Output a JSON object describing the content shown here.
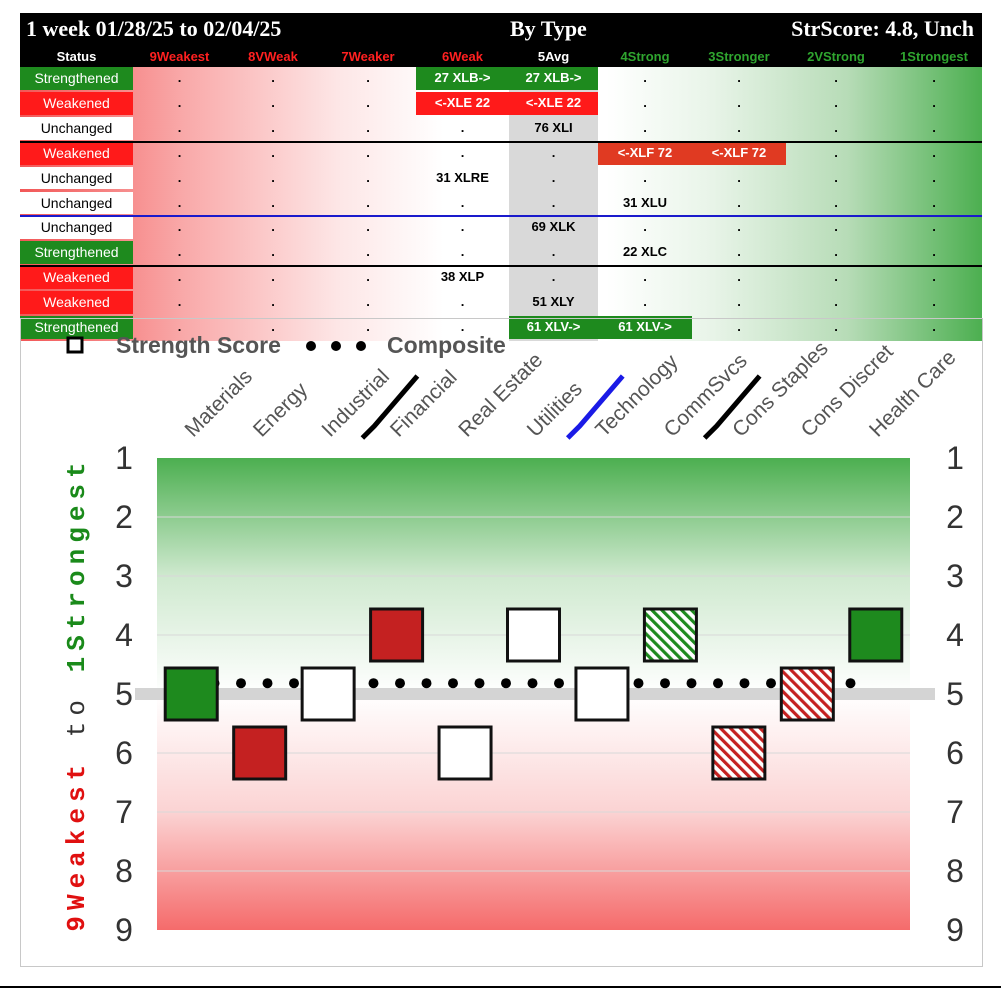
{
  "table": {
    "title_left": "1 week 01/28/25 to 02/04/25",
    "title_center": "By Type",
    "title_right": "StrScore: 4.8, Unch",
    "headers": [
      {
        "label": "Status",
        "color": "#ffffff"
      },
      {
        "label": "9Weakest",
        "color": "#ff2020"
      },
      {
        "label": "8VWeak",
        "color": "#ff2020"
      },
      {
        "label": "7Weaker",
        "color": "#ff2020"
      },
      {
        "label": "6Weak",
        "color": "#ff2020"
      },
      {
        "label": "5Avg",
        "color": "#ffffff"
      },
      {
        "label": "4Strong",
        "color": "#2fa52f"
      },
      {
        "label": "3Stronger",
        "color": "#2fa52f"
      },
      {
        "label": "2VStrong",
        "color": "#2fa52f"
      },
      {
        "label": "1Strongest",
        "color": "#2fa52f"
      }
    ],
    "dot_char": ".",
    "rows": [
      {
        "status": "Strengthened",
        "kind": "s",
        "cells": [
          {
            "col": 4,
            "text": "27 XLB->",
            "style": "g"
          },
          {
            "col": 5,
            "text": "27 XLB->",
            "style": "g"
          }
        ]
      },
      {
        "status": "Weakened",
        "kind": "w",
        "cells": [
          {
            "col": 4,
            "text": "<-XLE 22",
            "style": "r"
          },
          {
            "col": 5,
            "text": "<-XLE 22",
            "style": "r"
          }
        ]
      },
      {
        "status": "Unchanged",
        "kind": "u",
        "cells": [
          {
            "col": 5,
            "text": "76 XLI",
            "style": "t"
          }
        ]
      },
      {
        "status": "Weakened",
        "kind": "w",
        "cells": [
          {
            "col": 6,
            "text": "<-XLF 72",
            "style": "o"
          },
          {
            "col": 7,
            "text": "<-XLF 72",
            "style": "o"
          }
        ]
      },
      {
        "status": "Unchanged",
        "kind": "u",
        "cells": [
          {
            "col": 4,
            "text": "31 XLRE",
            "style": "t"
          }
        ]
      },
      {
        "status": "Unchanged",
        "kind": "u",
        "cells": [
          {
            "col": 6,
            "text": "31 XLU",
            "style": "t"
          }
        ]
      },
      {
        "status": "Unchanged",
        "kind": "u",
        "cells": [
          {
            "col": 5,
            "text": "69 XLK",
            "style": "t"
          }
        ]
      },
      {
        "status": "Strengthened",
        "kind": "s",
        "cells": [
          {
            "col": 6,
            "text": "22 XLC",
            "style": "t"
          }
        ]
      },
      {
        "status": "Weakened",
        "kind": "w",
        "cells": [
          {
            "col": 4,
            "text": "38 XLP",
            "style": "t"
          }
        ]
      },
      {
        "status": "Weakened",
        "kind": "w",
        "cells": [
          {
            "col": 5,
            "text": "51 XLY",
            "style": "t"
          }
        ]
      },
      {
        "status": "Strengthened",
        "kind": "s",
        "cells": [
          {
            "col": 5,
            "text": "61 XLV->",
            "style": "g"
          },
          {
            "col": 6,
            "text": "61 XLV->",
            "style": "g"
          }
        ]
      }
    ],
    "separators": [
      {
        "after_row": 3,
        "color": "#000000"
      },
      {
        "after_row": 6,
        "color": "#1a1acc"
      },
      {
        "after_row": 8,
        "color": "#000000"
      }
    ]
  },
  "chart_data": {
    "type": "scatter",
    "legend": {
      "marker_label": "Strength Score",
      "line_label": "Composite",
      "placement": "top-left"
    },
    "y_axis_label": [
      {
        "text": "9Weakest",
        "color": "#e01010"
      },
      {
        "text": " to ",
        "color": "#333333"
      },
      {
        "text": "1Strongest",
        "color": "#1a8a1a"
      }
    ],
    "ylim": [
      1,
      9
    ],
    "yticks": [
      "1",
      "2",
      "3",
      "4",
      "5",
      "6",
      "7",
      "8",
      "9"
    ],
    "categories": [
      "Materials",
      "Energy",
      "Industrial",
      "Financial",
      "Real Estate",
      "Utilities",
      "Technology",
      "CommSvcs",
      "Cons Staples",
      "Cons Discret",
      "Health Care"
    ],
    "values": [
      5,
      6,
      5,
      4,
      6,
      4,
      5,
      4,
      6,
      5,
      4
    ],
    "styles": [
      "green",
      "red",
      "white",
      "red",
      "white",
      "white",
      "white",
      "green-hatch",
      "red-hatch",
      "red-hatch",
      "green"
    ],
    "composite": 4.8,
    "average_line": 5,
    "group_dividers": [
      {
        "after_category": 2,
        "color": "#000000"
      },
      {
        "after_category": 5,
        "color": "#1a1ae6"
      },
      {
        "after_category": 7,
        "color": "#000000"
      }
    ],
    "colors": {
      "green": "#1e8a1e",
      "red": "#c42121"
    }
  }
}
